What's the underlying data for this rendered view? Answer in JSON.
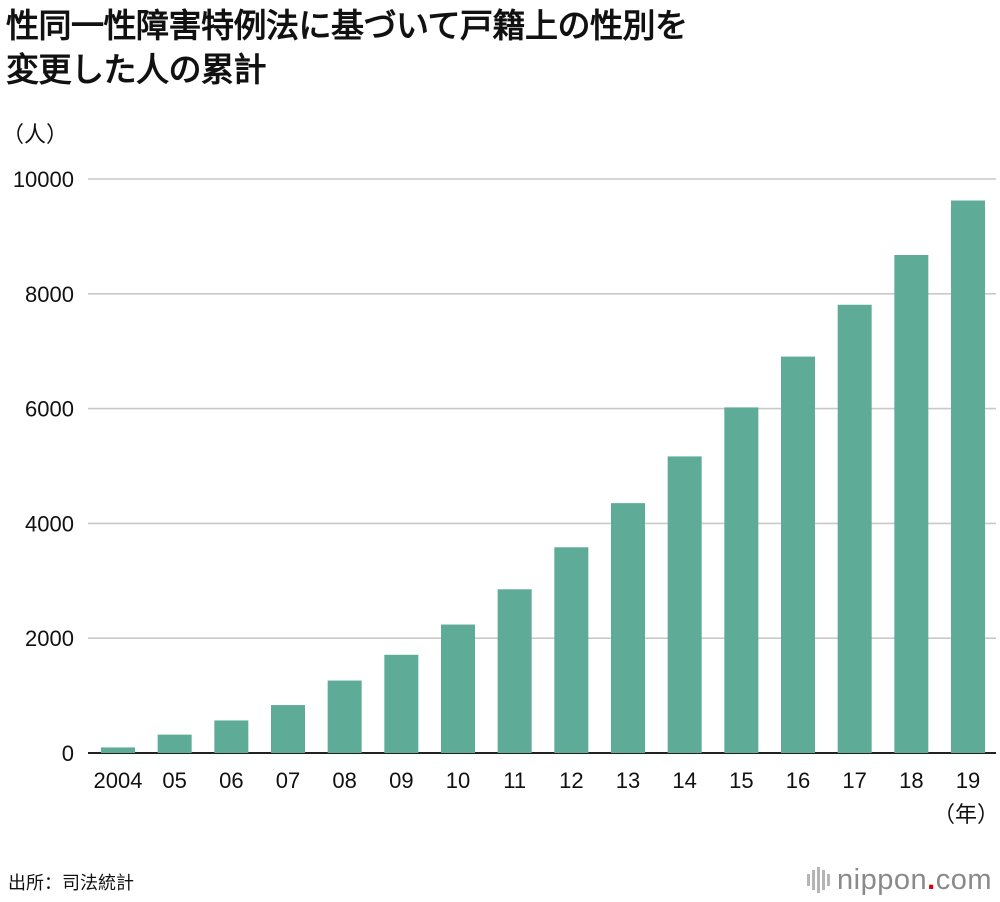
{
  "title": {
    "line1": "性同一性障害特例法に基づいて戸籍上の性別を",
    "line2": "変更した人の累計"
  },
  "source": "出所：司法統計",
  "logo": {
    "name_main": "nippon",
    "dot": ".",
    "name_tld": "com",
    "icon": "nippon-logo-icon"
  },
  "colors": {
    "bar": "#5eab97",
    "grid": "#c9c9c9",
    "logo_accent": "#d7000f"
  },
  "chart_data": {
    "type": "bar",
    "ylabel": "（人）",
    "xlabel": "（年）",
    "ylim": [
      0,
      10000
    ],
    "yticks": [
      0,
      2000,
      4000,
      6000,
      8000,
      10000
    ],
    "grid": true,
    "legend": "none",
    "categories": [
      "2004",
      "05",
      "06",
      "07",
      "08",
      "09",
      "10",
      "11",
      "12",
      "13",
      "14",
      "15",
      "16",
      "17",
      "18",
      "19"
    ],
    "values": [
      97,
      320,
      567,
      835,
      1262,
      1711,
      2238,
      2852,
      3584,
      4353,
      5167,
      6021,
      6906,
      7809,
      8676,
      9625
    ]
  }
}
